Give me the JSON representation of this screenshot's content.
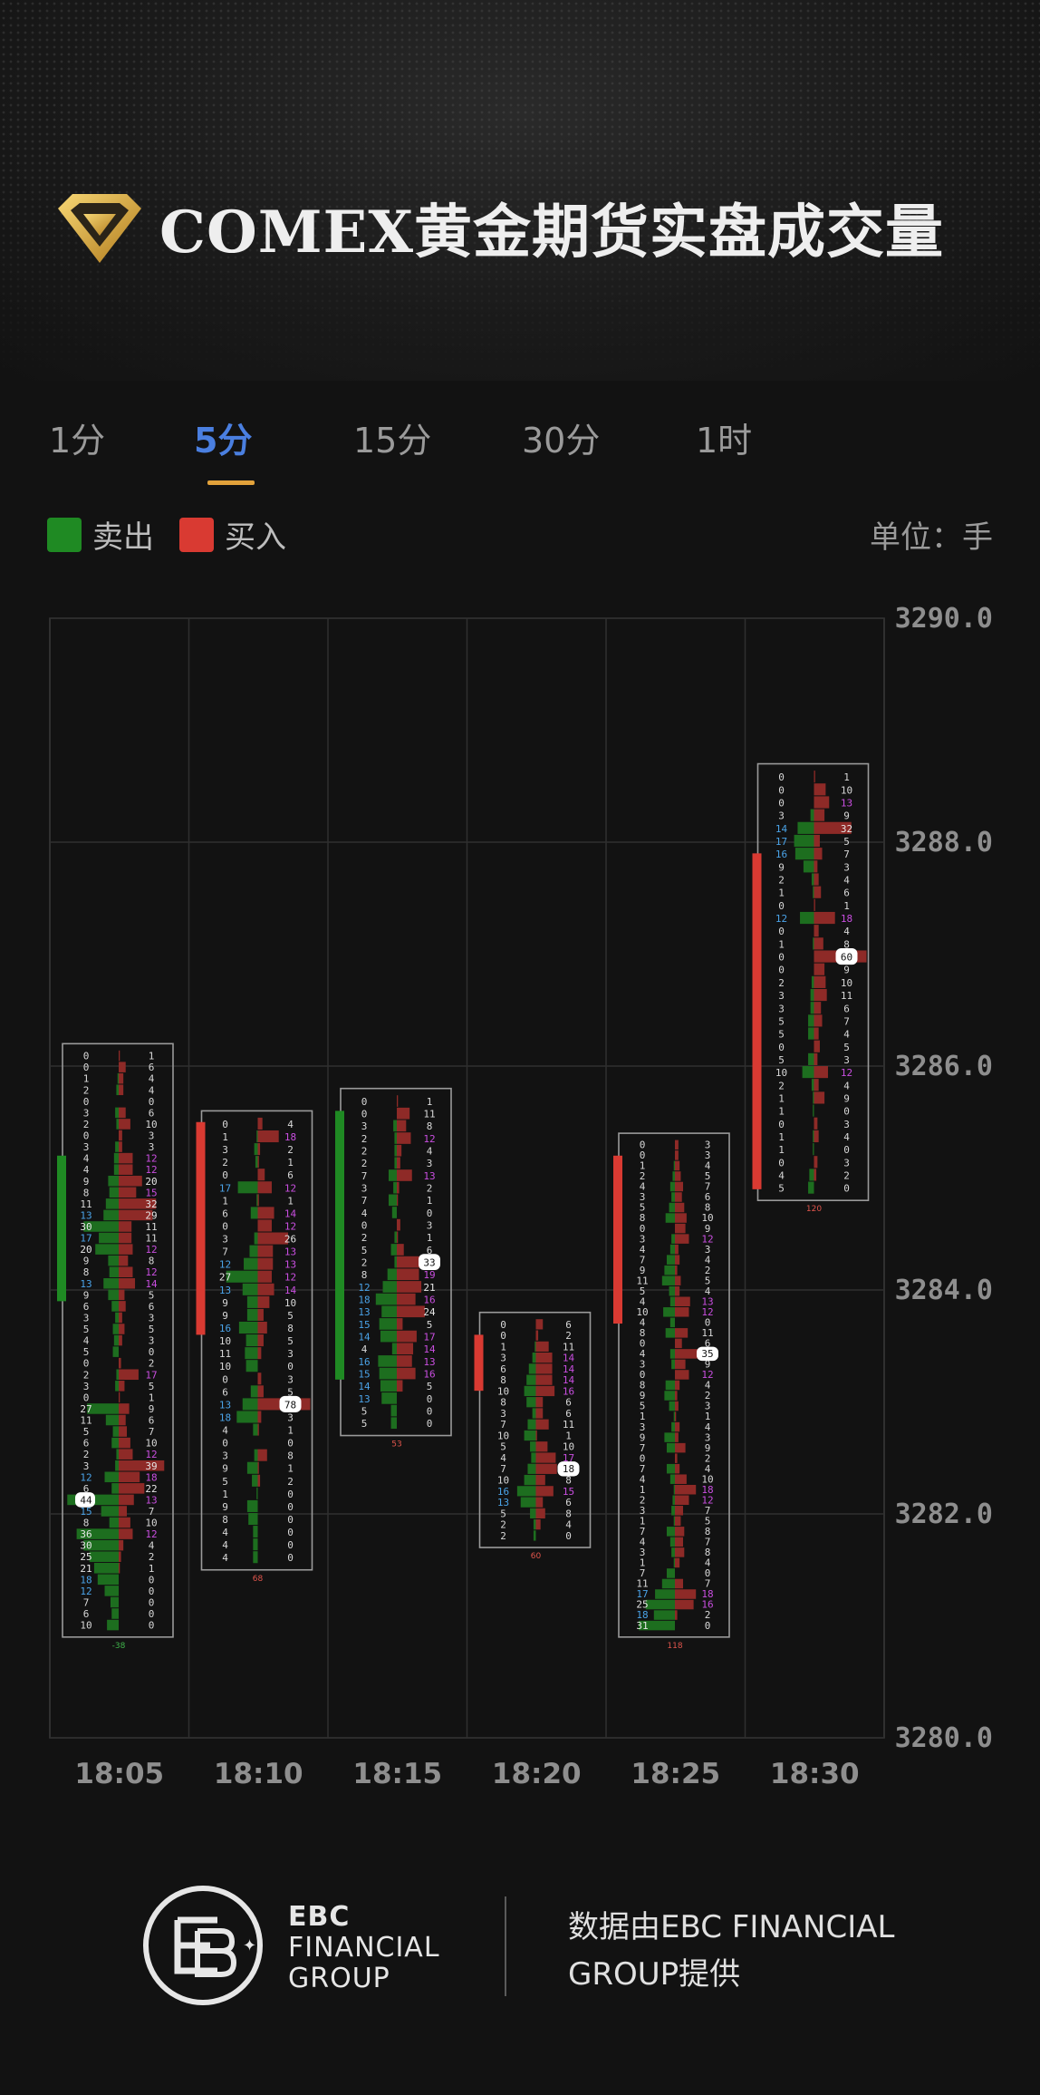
{
  "header": {
    "title": "COMEX黄金期货实盘成交量"
  },
  "tabs": [
    {
      "label": "1分"
    },
    {
      "label": "5分"
    },
    {
      "label": "15分"
    },
    {
      "label": "30分"
    },
    {
      "label": "1时"
    }
  ],
  "active_tab": 1,
  "legend": {
    "sell_label": "卖出",
    "buy_label": "买入",
    "unit": "单位：手"
  },
  "colors": {
    "sell": "#1f8a23",
    "buy": "#d93a32",
    "accent": "#4a7fe0",
    "underline": "#e2a23b",
    "sell_bar": "#1d6e1f",
    "buy_bar": "#8e2a27"
  },
  "footer": {
    "brand_line1": "EBC",
    "brand_line2": "FINANCIAL",
    "brand_line3": "GROUP",
    "credit": "数据由EBC FINANCIAL GROUP提供"
  },
  "chart_data": {
    "type": "footprint",
    "ylim": [
      3280.0,
      3290.0
    ],
    "yticks": [
      3290.0,
      3288.0,
      3286.0,
      3284.0,
      3282.0,
      3280.0
    ],
    "categories": [
      "18:05",
      "18:10",
      "18:15",
      "18:20",
      "18:25",
      "18:30"
    ],
    "candles": [
      {
        "time": "18:05",
        "dir": "down",
        "open": 3285.2,
        "close": 3283.9,
        "box_top": 3286.2,
        "box_bottom": 3280.9,
        "delta": "-38",
        "sell": [
          0,
          0,
          1,
          2,
          0,
          3,
          2,
          0,
          3,
          4,
          4,
          9,
          8,
          11,
          13,
          30,
          17,
          20,
          9,
          8,
          13,
          9,
          6,
          3,
          5,
          4,
          5,
          0,
          2,
          3,
          0,
          27,
          11,
          5,
          6,
          2,
          3,
          12,
          6,
          44,
          15,
          8,
          36,
          30,
          25,
          21,
          18,
          12,
          7,
          6,
          10
        ],
        "buy": [
          1,
          6,
          4,
          4,
          0,
          6,
          10,
          3,
          3,
          12,
          12,
          20,
          15,
          32,
          29,
          11,
          11,
          12,
          8,
          12,
          14,
          5,
          6,
          3,
          5,
          3,
          0,
          2,
          17,
          5,
          1,
          9,
          6,
          7,
          10,
          12,
          39,
          18,
          22,
          13,
          7,
          10,
          12,
          4,
          2,
          1,
          0,
          0,
          0,
          0,
          0
        ],
        "highlight_sell": {
          "row": 39,
          "value": "44"
        }
      },
      {
        "time": "18:10",
        "dir": "up",
        "open": 3283.6,
        "close": 3285.5,
        "box_top": 3285.6,
        "box_bottom": 3281.5,
        "delta": "68",
        "sell": [
          0,
          1,
          3,
          2,
          0,
          17,
          1,
          6,
          0,
          3,
          7,
          12,
          27,
          13,
          9,
          9,
          16,
          10,
          11,
          10,
          0,
          6,
          13,
          18,
          4,
          0,
          3,
          9,
          5,
          1,
          9,
          8,
          4,
          4,
          4
        ],
        "buy": [
          4,
          18,
          2,
          1,
          6,
          12,
          1,
          14,
          12,
          26,
          13,
          13,
          12,
          14,
          10,
          5,
          8,
          5,
          3,
          0,
          3,
          5,
          78,
          3,
          1,
          0,
          8,
          1,
          2,
          0,
          0,
          0,
          0,
          0,
          0
        ],
        "highlight_buy": {
          "row": 22,
          "value": "78"
        }
      },
      {
        "time": "18:15",
        "dir": "down",
        "open": 3285.6,
        "close": 3283.2,
        "box_top": 3285.8,
        "box_bottom": 3282.7,
        "delta": "53",
        "sell": [
          0,
          0,
          3,
          2,
          2,
          2,
          7,
          3,
          7,
          4,
          0,
          2,
          5,
          2,
          8,
          12,
          18,
          13,
          15,
          14,
          4,
          16,
          15,
          14,
          13,
          5,
          5
        ],
        "buy": [
          1,
          11,
          8,
          12,
          4,
          3,
          13,
          2,
          1,
          0,
          3,
          1,
          6,
          33,
          19,
          21,
          16,
          24,
          5,
          17,
          14,
          13,
          16,
          5,
          0,
          0,
          0
        ],
        "highlight_buy": {
          "row": 13,
          "value": "33"
        }
      },
      {
        "time": "18:20",
        "dir": "up",
        "open": 3283.1,
        "close": 3283.6,
        "box_top": 3283.8,
        "box_bottom": 3281.7,
        "delta": "60",
        "sell": [
          0,
          0,
          1,
          3,
          6,
          8,
          10,
          8,
          3,
          7,
          10,
          5,
          4,
          7,
          10,
          16,
          13,
          5,
          2,
          2
        ],
        "buy": [
          6,
          2,
          11,
          14,
          14,
          14,
          16,
          6,
          6,
          11,
          1,
          10,
          17,
          18,
          8,
          15,
          6,
          8,
          4,
          0
        ],
        "highlight_buy": {
          "row": 13,
          "value": "18"
        }
      },
      {
        "time": "18:25",
        "dir": "up",
        "open": 3283.7,
        "close": 3285.2,
        "box_top": 3285.4,
        "box_bottom": 3280.9,
        "delta": "118",
        "sell": [
          0,
          0,
          1,
          2,
          4,
          3,
          5,
          8,
          0,
          3,
          4,
          7,
          9,
          11,
          5,
          4,
          10,
          4,
          8,
          0,
          4,
          3,
          0,
          8,
          9,
          5,
          1,
          3,
          9,
          7,
          0,
          7,
          4,
          1,
          2,
          3,
          1,
          7,
          4,
          3,
          1,
          7,
          11,
          17,
          25,
          18,
          31
        ],
        "buy": [
          3,
          3,
          4,
          5,
          7,
          6,
          8,
          10,
          9,
          12,
          3,
          4,
          2,
          5,
          4,
          13,
          12,
          0,
          11,
          6,
          35,
          9,
          12,
          4,
          2,
          3,
          1,
          4,
          3,
          9,
          2,
          4,
          10,
          18,
          12,
          7,
          5,
          8,
          7,
          8,
          4,
          0,
          7,
          18,
          16,
          2,
          0
        ],
        "highlight_buy": {
          "row": 20,
          "value": "35"
        }
      },
      {
        "time": "18:30",
        "dir": "up",
        "open": 3284.9,
        "close": 3287.9,
        "box_top": 3288.7,
        "box_bottom": 3284.8,
        "delta": "120",
        "sell": [
          0,
          0,
          0,
          3,
          14,
          17,
          16,
          9,
          2,
          1,
          0,
          12,
          0,
          1,
          0,
          0,
          2,
          3,
          3,
          5,
          5,
          0,
          5,
          10,
          2,
          1,
          1,
          0,
          1,
          1,
          0,
          4,
          5
        ],
        "buy": [
          1,
          10,
          13,
          9,
          32,
          5,
          7,
          3,
          4,
          6,
          1,
          18,
          4,
          8,
          60,
          9,
          10,
          11,
          6,
          7,
          4,
          5,
          3,
          12,
          4,
          9,
          0,
          3,
          4,
          0,
          3,
          2,
          0
        ],
        "highlight_buy": {
          "row": 14,
          "value": "60"
        }
      }
    ]
  }
}
